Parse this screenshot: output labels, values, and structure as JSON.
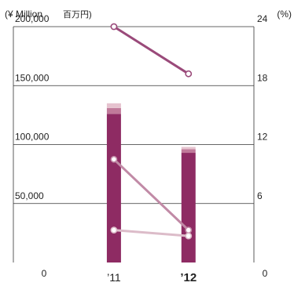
{
  "chart_data": {
    "type": "bar",
    "categories": [
      "’11",
      "’12"
    ],
    "highlight_category_index": 1,
    "left_unit_label": "(¥ Million",
    "left_unit_label_jp": "百万円)",
    "right_unit_label": "(%)",
    "left_axis": {
      "ylim": [
        0,
        200000
      ],
      "ticks": [
        0,
        50000,
        100000,
        150000,
        200000
      ],
      "tick_labels": [
        "0",
        "50,000",
        "100,000",
        "150,000",
        "200,000"
      ]
    },
    "right_axis": {
      "ylim": [
        0,
        24
      ],
      "ticks": [
        0,
        6,
        12,
        18,
        24
      ],
      "tick_labels": [
        "0",
        "6",
        "12",
        "18",
        "24"
      ]
    },
    "grid": true,
    "bar_series": [
      {
        "values": [
          126000,
          93000
        ],
        "color": "#8e2b63"
      },
      {
        "values": [
          5000,
          3000
        ],
        "color": "#c07a9a"
      },
      {
        "values": [
          4000,
          2000
        ],
        "color": "#e6c3cf"
      }
    ],
    "line_series": [
      {
        "axis": "left",
        "values": [
          200000,
          160000
        ],
        "color": "#9a4a7a"
      },
      {
        "axis": "right",
        "values": [
          10.5,
          3.3
        ],
        "color": "#c18aa6"
      },
      {
        "axis": "right",
        "values": [
          3.3,
          2.7
        ],
        "color": "#dcbcc9"
      }
    ]
  }
}
